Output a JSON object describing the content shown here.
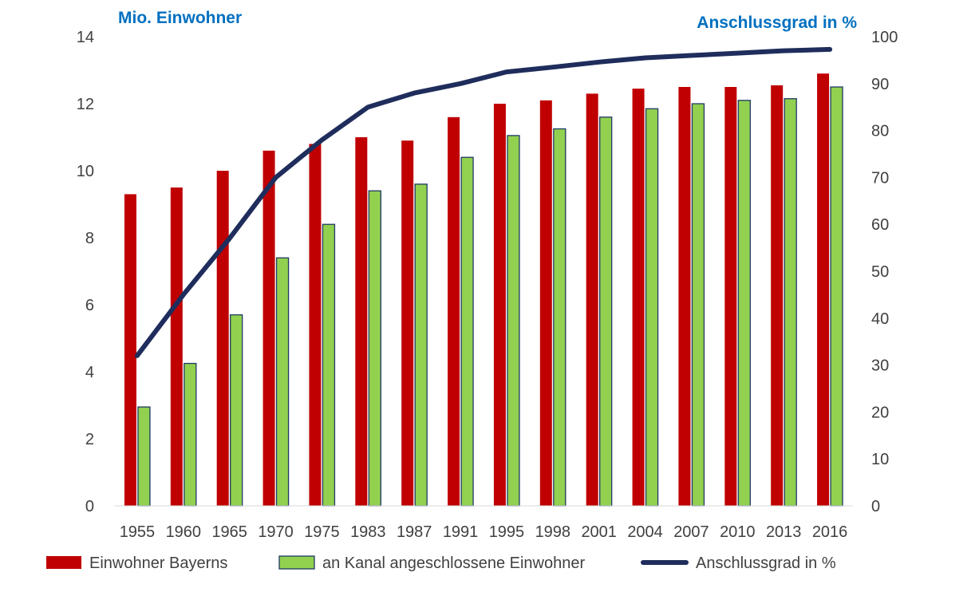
{
  "chart_data": {
    "type": "bar",
    "y_left_label": "Mio. Einwohner",
    "y_right_label": "Anschlussgrad in %",
    "categories": [
      "1955",
      "1960",
      "1965",
      "1970",
      "1975",
      "1983",
      "1987",
      "1991",
      "1995",
      "1998",
      "2001",
      "2004",
      "2007",
      "2010",
      "2013",
      "2016"
    ],
    "ylim_left": [
      0,
      14
    ],
    "yticks_left": [
      0,
      2,
      4,
      6,
      8,
      10,
      12,
      14
    ],
    "ylim_right": [
      0,
      100
    ],
    "yticks_right": [
      0,
      10,
      20,
      30,
      40,
      50,
      60,
      70,
      80,
      90,
      100
    ],
    "series": [
      {
        "name": "Einwohner Bayerns",
        "kind": "bar",
        "axis": "left",
        "color": "#c00000",
        "values": [
          9.3,
          9.5,
          10.0,
          10.6,
          10.8,
          11.0,
          10.9,
          11.6,
          12.0,
          12.1,
          12.3,
          12.45,
          12.5,
          12.5,
          12.55,
          12.9
        ]
      },
      {
        "name": "an Kanal angeschlossene Einwohner",
        "kind": "bar",
        "axis": "left",
        "color": "#92d050",
        "border": "#1f3864",
        "values": [
          2.95,
          4.25,
          5.7,
          7.4,
          8.4,
          9.4,
          9.6,
          10.4,
          11.05,
          11.25,
          11.6,
          11.85,
          12.0,
          12.1,
          12.15,
          12.5
        ]
      },
      {
        "name": "Anschlussgrad in %",
        "kind": "line",
        "axis": "right",
        "color": "#1f2d5c",
        "values": [
          32,
          45,
          57,
          70,
          78,
          85,
          88,
          90,
          92.5,
          93.5,
          94.6,
          95.5,
          96,
          96.5,
          97,
          97.3
        ]
      }
    ],
    "legend_position": "bottom",
    "grid": false
  }
}
